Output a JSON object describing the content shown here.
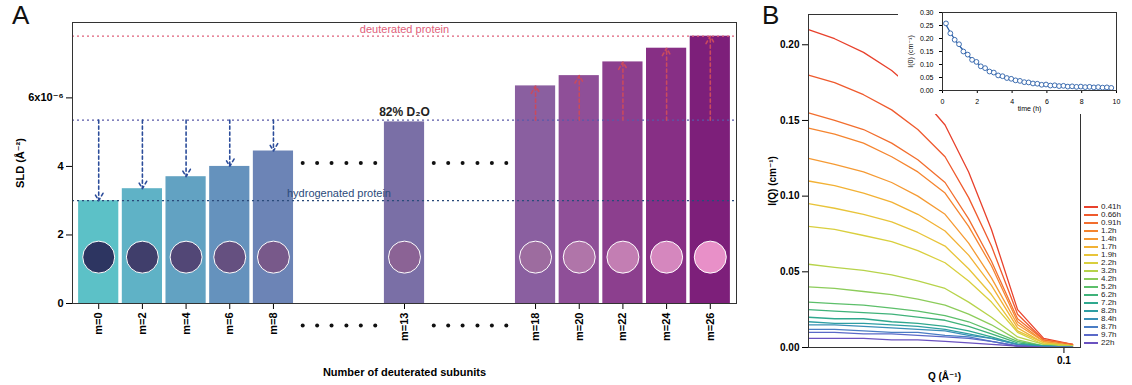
{
  "chart_data": [
    {
      "type": "bar",
      "title": "A",
      "xlabel": "Number of deuterated subunits",
      "ylabel": "SLD (Å⁻²)",
      "categories": [
        "m=0",
        "m=2",
        "m=4",
        "m=6",
        "m=8",
        null,
        null,
        "m=13",
        null,
        null,
        "m=18",
        "m=20",
        "m=22",
        "m=24",
        "m=26"
      ],
      "values": [
        3.0,
        3.35,
        3.7,
        4.0,
        4.45,
        null,
        null,
        5.3,
        null,
        null,
        6.35,
        6.65,
        7.05,
        7.45,
        7.8
      ],
      "colors": [
        "#5cc1c7",
        "#5fb2c6",
        "#62a2c2",
        "#6592bd",
        "#6c84b6",
        null,
        null,
        "#7a6fa6",
        null,
        null,
        "#8a5fa0",
        "#8f4f98",
        "#8c3f8e",
        "#872f85",
        "#7d1f7a"
      ],
      "ylim": [
        0,
        8.2
      ],
      "yticks": [
        0,
        2,
        4,
        {
          "value": 6,
          "label": "6x10⁻⁶"
        }
      ],
      "reference_lines": [
        {
          "label": "deuterated protein",
          "value": 7.8,
          "color": "#e0607a"
        },
        {
          "label": "82% D₂O",
          "value": 5.35,
          "color": "#5a5aa8"
        },
        {
          "label": "hydrogenated protein",
          "value": 3.0,
          "color": "#2a4a7a"
        }
      ]
    },
    {
      "type": "line",
      "title": "B",
      "log": "x",
      "legend": "right",
      "xlabel": "Q (Å⁻¹)",
      "ylabel": "I(Q) (cm⁻¹)",
      "x": [
        0.006,
        0.008,
        0.011,
        0.015,
        0.02,
        0.027,
        0.035,
        0.045,
        0.06,
        0.08,
        0.11
      ],
      "xlim": [
        0.006,
        0.12
      ],
      "xticks": [
        0.1
      ],
      "ylim": [
        0,
        0.22
      ],
      "yticks": [
        {
          "value": 0,
          "label": "0.00"
        },
        {
          "value": 0.05,
          "label": "0.05"
        },
        {
          "value": 0.1,
          "label": "0.10"
        },
        {
          "value": 0.15,
          "label": "0.15"
        },
        {
          "value": 0.2,
          "label": "0.20"
        }
      ],
      "series": [
        {
          "name": "0.41h",
          "color": "#e8412c",
          "values": [
            0.21,
            0.204,
            0.195,
            0.183,
            0.168,
            0.147,
            0.116,
            0.078,
            0.025,
            0.006,
            0.002
          ]
        },
        {
          "name": "0.66h",
          "color": "#ef5a2d",
          "values": [
            0.18,
            0.175,
            0.167,
            0.157,
            0.144,
            0.126,
            0.099,
            0.067,
            0.022,
            0.005,
            0.002
          ]
        },
        {
          "name": "0.91h",
          "color": "#f26e2e",
          "values": [
            0.155,
            0.15,
            0.144,
            0.135,
            0.124,
            0.109,
            0.085,
            0.057,
            0.019,
            0.005,
            0.002
          ]
        },
        {
          "name": "1.2h",
          "color": "#f5852f",
          "values": [
            0.145,
            0.141,
            0.135,
            0.126,
            0.116,
            0.102,
            0.08,
            0.054,
            0.017,
            0.004,
            0.001
          ]
        },
        {
          "name": "1.4h",
          "color": "#f59a33",
          "values": [
            0.125,
            0.121,
            0.116,
            0.109,
            0.1,
            0.088,
            0.069,
            0.046,
            0.015,
            0.004,
            0.001
          ]
        },
        {
          "name": "1.7h",
          "color": "#f2b134",
          "values": [
            0.11,
            0.107,
            0.102,
            0.096,
            0.088,
            0.077,
            0.061,
            0.041,
            0.013,
            0.003,
            0.001
          ]
        },
        {
          "name": "1.9h",
          "color": "#e8c43a",
          "values": [
            0.095,
            0.092,
            0.088,
            0.083,
            0.076,
            0.067,
            0.052,
            0.035,
            0.011,
            0.003,
            0.001
          ]
        },
        {
          "name": "2.2h",
          "color": "#d9cf3e",
          "values": [
            0.08,
            0.078,
            0.074,
            0.07,
            0.064,
            0.056,
            0.044,
            0.03,
            0.01,
            0.002,
            0.001
          ]
        },
        {
          "name": "3.2h",
          "color": "#b7d34a",
          "values": [
            0.055,
            0.053,
            0.051,
            0.048,
            0.044,
            0.039,
            0.03,
            0.02,
            0.007,
            0.002,
            0.001
          ]
        },
        {
          "name": "4.2h",
          "color": "#8ccc5a",
          "values": [
            0.04,
            0.039,
            0.037,
            0.035,
            0.032,
            0.028,
            0.022,
            0.015,
            0.005,
            0.001,
            0.0
          ]
        },
        {
          "name": "5.2h",
          "color": "#5cbf6a",
          "values": [
            0.03,
            0.029,
            0.028,
            0.026,
            0.024,
            0.021,
            0.017,
            0.011,
            0.004,
            0.001,
            0.0
          ]
        },
        {
          "name": "6.2h",
          "color": "#3fb27a",
          "values": [
            0.025,
            0.024,
            0.023,
            0.022,
            0.02,
            0.018,
            0.014,
            0.009,
            0.003,
            0.001,
            0.0
          ]
        },
        {
          "name": "7.2h",
          "color": "#2fa88e",
          "values": [
            0.02,
            0.019,
            0.019,
            0.017,
            0.016,
            0.014,
            0.011,
            0.007,
            0.002,
            0.001,
            0.0
          ]
        },
        {
          "name": "8.2h",
          "color": "#2e9ea3",
          "values": [
            0.017,
            0.016,
            0.016,
            0.015,
            0.014,
            0.012,
            0.009,
            0.006,
            0.002,
            0.001,
            0.0
          ]
        },
        {
          "name": "8.4h",
          "color": "#3a8fb7",
          "values": [
            0.015,
            0.015,
            0.014,
            0.013,
            0.012,
            0.011,
            0.008,
            0.006,
            0.002,
            0.0,
            0.0
          ]
        },
        {
          "name": "8.7h",
          "color": "#4a7dc4",
          "values": [
            0.012,
            0.012,
            0.011,
            0.01,
            0.01,
            0.008,
            0.007,
            0.004,
            0.001,
            0.0,
            0.0
          ]
        },
        {
          "name": "9.7h",
          "color": "#5a69c8",
          "values": [
            0.01,
            0.01,
            0.009,
            0.009,
            0.008,
            0.007,
            0.006,
            0.004,
            0.001,
            0.0,
            0.0
          ]
        },
        {
          "name": "22h",
          "color": "#6a52c0",
          "values": [
            0.006,
            0.006,
            0.006,
            0.005,
            0.005,
            0.004,
            0.003,
            0.002,
            0.001,
            0.0,
            0.0
          ]
        }
      ]
    },
    {
      "type": "scatter",
      "marker": "circle",
      "color": "#2a5fa8",
      "xlabel": "time (h)",
      "ylabel": "I(0) (cm⁻¹)",
      "x": [
        0.2,
        0.45,
        0.7,
        0.95,
        1.2,
        1.45,
        1.7,
        1.95,
        2.2,
        2.45,
        2.7,
        2.95,
        3.2,
        3.45,
        3.7,
        3.95,
        4.2,
        4.45,
        4.7,
        4.95,
        5.2,
        5.45,
        5.7,
        5.95,
        6.2,
        6.45,
        6.7,
        6.95,
        7.2,
        7.45,
        7.7,
        7.95,
        8.2,
        8.45,
        8.7,
        8.95,
        9.2,
        9.45,
        9.7
      ],
      "values": [
        0.258,
        0.22,
        0.195,
        0.178,
        0.15,
        0.138,
        0.118,
        0.11,
        0.093,
        0.086,
        0.073,
        0.069,
        0.058,
        0.055,
        0.048,
        0.045,
        0.039,
        0.037,
        0.032,
        0.031,
        0.027,
        0.026,
        0.022,
        0.023,
        0.019,
        0.02,
        0.017,
        0.018,
        0.015,
        0.016,
        0.014,
        0.015,
        0.013,
        0.014,
        0.012,
        0.013,
        0.011,
        0.012,
        0.01
      ],
      "fit": [
        0.253,
        0.223,
        0.197,
        0.174,
        0.154,
        0.136,
        0.12,
        0.107,
        0.095,
        0.084,
        0.075,
        0.067,
        0.06,
        0.054,
        0.049,
        0.044,
        0.04,
        0.036,
        0.033,
        0.03,
        0.028,
        0.025,
        0.023,
        0.022,
        0.02,
        0.019,
        0.018,
        0.017,
        0.016,
        0.015,
        0.015,
        0.014,
        0.014,
        0.013,
        0.013,
        0.012,
        0.012,
        0.012,
        0.012
      ],
      "xlim": [
        0,
        10
      ],
      "xticks": [
        0,
        2,
        4,
        6,
        8,
        10
      ],
      "ylim": [
        0,
        0.3
      ],
      "yticks": [
        {
          "value": 0,
          "label": "0.00"
        },
        {
          "value": 0.05,
          "label": "0.05"
        },
        {
          "value": 0.1,
          "label": "0.10"
        },
        {
          "value": 0.15,
          "label": "0.15"
        },
        {
          "value": 0.2,
          "label": "0.20"
        },
        {
          "value": 0.25,
          "label": "0.25"
        },
        {
          "value": 0.3,
          "label": "0.30"
        }
      ]
    }
  ]
}
